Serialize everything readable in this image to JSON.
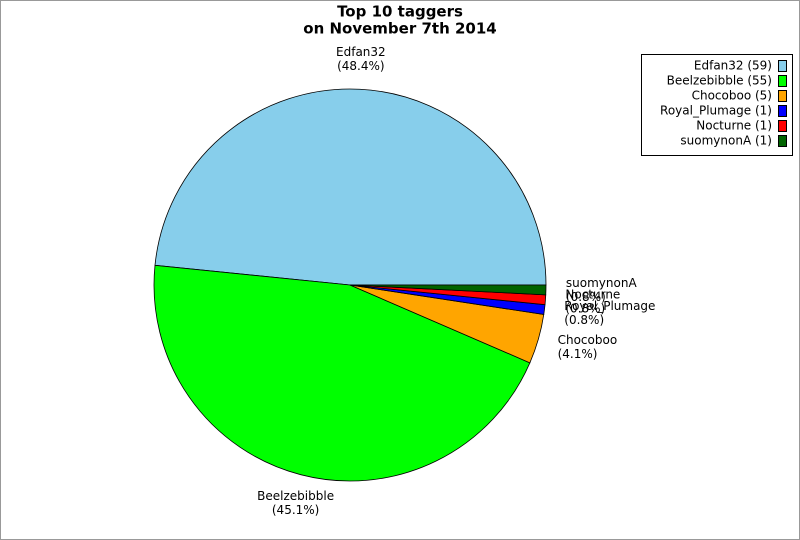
{
  "chart_data": {
    "type": "pie",
    "title": [
      "Top 10 taggers",
      "on November 7th 2014"
    ],
    "categories": [
      "Edfan32",
      "Beelzebibble",
      "Chocoboo",
      "Royal_Plumage",
      "Nocturne",
      "suomynonA"
    ],
    "values": [
      48.4,
      45.1,
      4.1,
      0.8,
      0.8,
      0.8
    ],
    "value_labels": [
      "(48.4%)",
      "(45.1%)",
      "(4.1%)",
      "(0.8%)",
      "(0.8%)",
      "(0.8%)"
    ],
    "colors": [
      "#87ceeb",
      "#00ff00",
      "#ffa500",
      "#0000ff",
      "#ff0000",
      "#006400"
    ],
    "legend": [
      "Edfan32 (59)",
      "Beelzebibble (55)",
      "Chocoboo (5)",
      "Royal_Plumage (1)",
      "Nocturne (1)",
      "suomynonA (1)"
    ],
    "legend_position": "upper right"
  }
}
